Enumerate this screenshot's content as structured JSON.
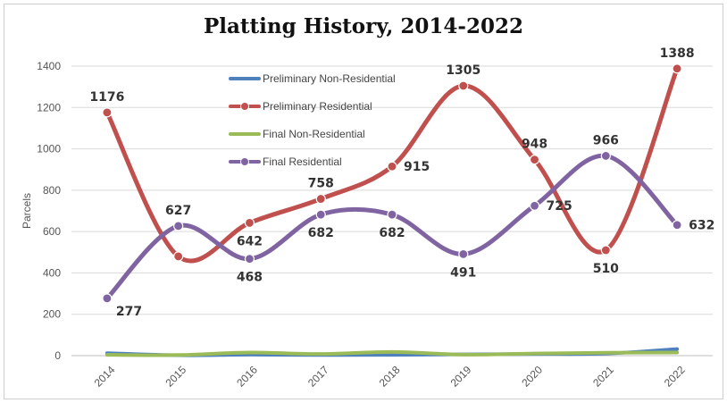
{
  "chart_data": {
    "type": "line",
    "title": "Platting History, 2014-2022",
    "xlabel": "",
    "ylabel": "Parcels",
    "ylim": [
      0,
      1400
    ],
    "yticks": [
      0,
      200,
      400,
      600,
      800,
      1000,
      1200,
      1400
    ],
    "categories": [
      "2014",
      "2015",
      "2016",
      "2017",
      "2018",
      "2019",
      "2020",
      "2021",
      "2022"
    ],
    "grid": true,
    "smooth": true,
    "legend_position": "top-left inside plot",
    "series": [
      {
        "name": "Preliminary Non-Residential",
        "color": "#4f81bd",
        "values": [
          12,
          2,
          5,
          3,
          4,
          6,
          8,
          10,
          32
        ],
        "labeled": false,
        "markers": false
      },
      {
        "name": "Preliminary Residential",
        "color": "#c0504d",
        "values": [
          1176,
          480,
          642,
          758,
          915,
          1305,
          948,
          510,
          1388
        ],
        "labeled": true,
        "markers": true
      },
      {
        "name": "Final Non-Residential",
        "color": "#9bbb59",
        "values": [
          4,
          3,
          15,
          8,
          18,
          5,
          10,
          14,
          15
        ],
        "labeled": false,
        "markers": false
      },
      {
        "name": "Final Residential",
        "color": "#8064a2",
        "values": [
          277,
          627,
          468,
          682,
          682,
          491,
          725,
          966,
          632
        ],
        "labeled": true,
        "markers": true
      }
    ],
    "data_labels": [
      {
        "series": 1,
        "index": 0,
        "text": "1176",
        "pos": "above"
      },
      {
        "series": 1,
        "index": 2,
        "text": "642",
        "pos": "below"
      },
      {
        "series": 1,
        "index": 3,
        "text": "758",
        "pos": "above"
      },
      {
        "series": 1,
        "index": 4,
        "text": "915",
        "pos": "right"
      },
      {
        "series": 1,
        "index": 5,
        "text": "1305",
        "pos": "above"
      },
      {
        "series": 1,
        "index": 6,
        "text": "948",
        "pos": "above"
      },
      {
        "series": 1,
        "index": 7,
        "text": "510",
        "pos": "below"
      },
      {
        "series": 1,
        "index": 8,
        "text": "1388",
        "pos": "above"
      },
      {
        "series": 3,
        "index": 0,
        "text": "277",
        "pos": "right-below"
      },
      {
        "series": 3,
        "index": 1,
        "text": "627",
        "pos": "above"
      },
      {
        "series": 3,
        "index": 2,
        "text": "468",
        "pos": "below"
      },
      {
        "series": 3,
        "index": 3,
        "text": "682",
        "pos": "below"
      },
      {
        "series": 3,
        "index": 4,
        "text": "682",
        "pos": "below"
      },
      {
        "series": 3,
        "index": 5,
        "text": "491",
        "pos": "below"
      },
      {
        "series": 3,
        "index": 6,
        "text": "725",
        "pos": "right"
      },
      {
        "series": 3,
        "index": 7,
        "text": "966",
        "pos": "above"
      },
      {
        "series": 3,
        "index": 8,
        "text": "632",
        "pos": "right"
      }
    ]
  }
}
